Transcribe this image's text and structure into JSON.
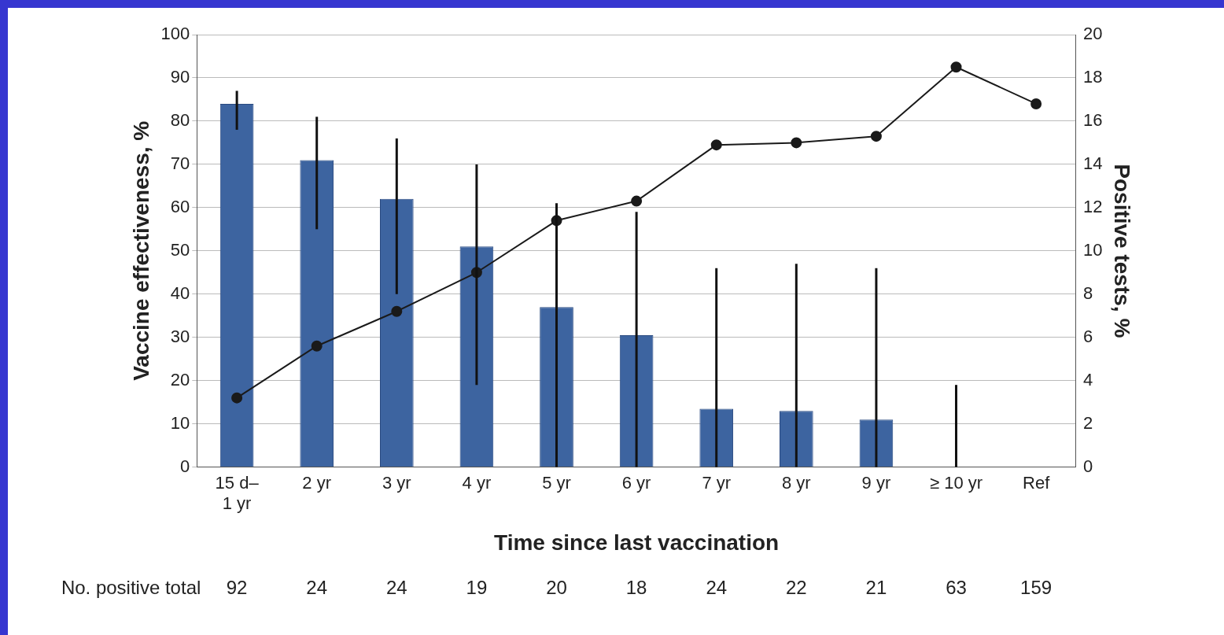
{
  "chart_data": {
    "type": "bar",
    "xlabel": "Time since last vaccination",
    "ylabel": "Vaccine effectiveness, %",
    "y2label": "Positive tests, %",
    "categories": [
      "15 d–\n1 yr",
      "2 yr",
      "3 yr",
      "4 yr",
      "5 yr",
      "6 yr",
      "7 yr",
      "8 yr",
      "9 yr",
      "≥ 10 yr",
      "Ref"
    ],
    "series": [
      {
        "color": "#3d64a0",
        "values": [
          84,
          71,
          62,
          51,
          37,
          30.5,
          13.5,
          13,
          11,
          0,
          null
        ],
        "errors": [
          [
            78,
            87
          ],
          [
            55,
            81
          ],
          [
            40,
            76
          ],
          [
            19,
            70
          ],
          [
            0,
            61
          ],
          [
            0,
            59
          ],
          [
            0,
            46
          ],
          [
            0,
            47
          ],
          [
            0,
            46
          ],
          [
            0,
            19
          ],
          null
        ]
      },
      {
        "type": "line",
        "axis": "y2",
        "color": "#1a1a1a",
        "marker": "circle",
        "line_style": "solid",
        "values": [
          3.2,
          5.6,
          7.2,
          9.0,
          11.4,
          12.3,
          14.9,
          15.0,
          15.3,
          18.5,
          16.8
        ]
      }
    ],
    "ylim": [
      0,
      100
    ],
    "yticks": [
      0,
      10,
      20,
      30,
      40,
      50,
      60,
      70,
      80,
      90,
      100
    ],
    "y2lim": [
      0,
      20
    ],
    "y2ticks": [
      0,
      2,
      4,
      6,
      8,
      10,
      12,
      14,
      16,
      18,
      20
    ],
    "grid": "y",
    "legend": false,
    "annotations": [
      "No. positive total",
      "92",
      "24",
      "24",
      "19",
      "20",
      "18",
      "24",
      "22",
      "21",
      "63",
      "159"
    ]
  }
}
